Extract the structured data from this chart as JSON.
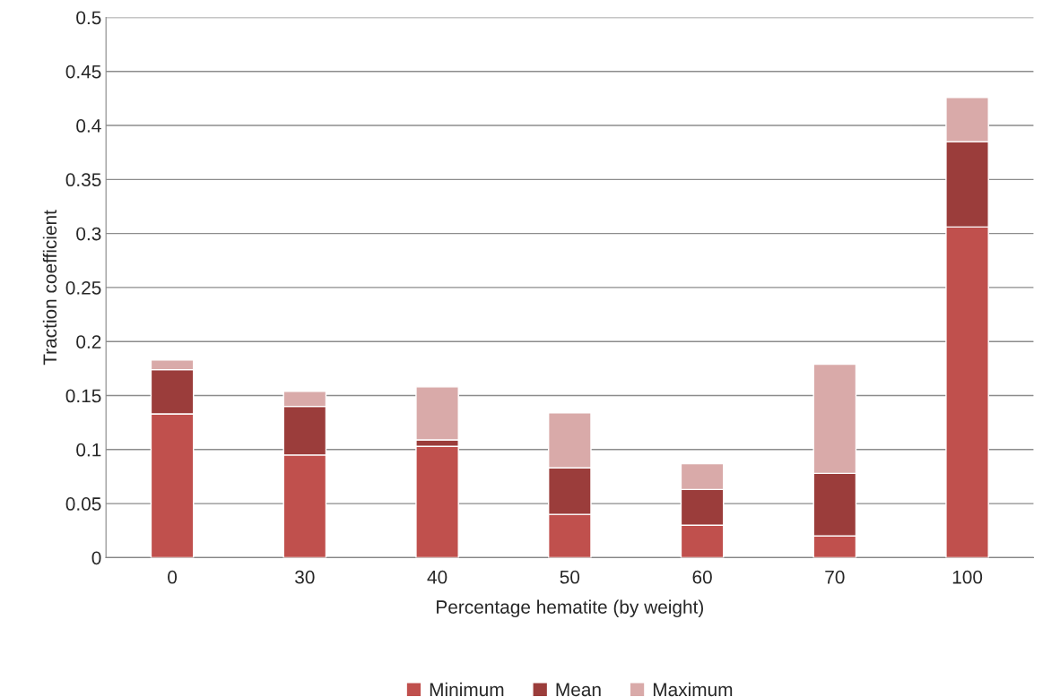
{
  "chart_data": {
    "type": "bar",
    "stacked": true,
    "xlabel": "Percentage hematite (by weight)",
    "ylabel": "Traction coefficient",
    "categories": [
      "0",
      "30",
      "40",
      "50",
      "60",
      "70",
      "100"
    ],
    "series": [
      {
        "name": "Minimum",
        "color": "#c0504d",
        "values": [
          0.133,
          0.095,
          0.103,
          0.04,
          0.03,
          0.02,
          0.306
        ]
      },
      {
        "name": "Mean",
        "color": "#9b3d3b",
        "values": [
          0.041,
          0.045,
          0.006,
          0.043,
          0.033,
          0.058,
          0.079
        ]
      },
      {
        "name": "Maximum",
        "color": "#d9aaa9",
        "values": [
          0.009,
          0.014,
          0.049,
          0.051,
          0.024,
          0.101,
          0.041
        ]
      }
    ],
    "ylim": [
      0,
      0.5
    ],
    "yticks": [
      0,
      0.05,
      0.1,
      0.15,
      0.2,
      0.25,
      0.3,
      0.35,
      0.4,
      0.45,
      0.5
    ],
    "grid": "y",
    "legend": "bottom"
  }
}
